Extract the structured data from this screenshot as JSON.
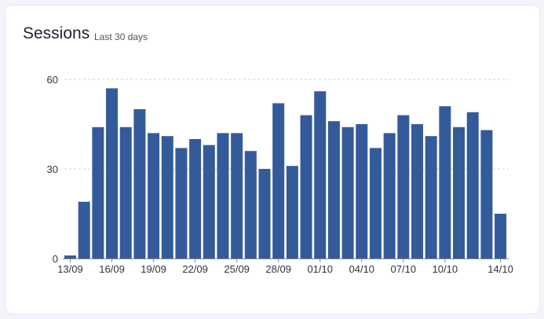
{
  "chart_data": {
    "type": "bar",
    "title": "Sessions",
    "subtitle": "Last 30 days",
    "xlabel": "",
    "ylabel": "",
    "ylim": [
      0,
      60
    ],
    "yticks": [
      0,
      30,
      60
    ],
    "grid": true,
    "color": "#335b9a",
    "categories": [
      "13/09",
      "14/09",
      "15/09",
      "16/09",
      "17/09",
      "18/09",
      "19/09",
      "20/09",
      "21/09",
      "22/09",
      "23/09",
      "24/09",
      "25/09",
      "26/09",
      "27/09",
      "28/09",
      "29/09",
      "30/09",
      "01/10",
      "02/10",
      "03/10",
      "04/10",
      "05/10",
      "06/10",
      "07/10",
      "08/10",
      "09/10",
      "10/10",
      "11/10",
      "12/10",
      "13/10",
      "14/10"
    ],
    "xtick_labels": [
      "13/09",
      "16/09",
      "19/09",
      "22/09",
      "25/09",
      "28/09",
      "01/10",
      "04/10",
      "07/10",
      "10/10",
      "14/10"
    ],
    "values": [
      1,
      19,
      44,
      57,
      44,
      50,
      42,
      41,
      37,
      40,
      38,
      42,
      42,
      36,
      30,
      52,
      31,
      48,
      56,
      46,
      44,
      45,
      37,
      42,
      48,
      45,
      41,
      51,
      44,
      49,
      43,
      15
    ]
  }
}
